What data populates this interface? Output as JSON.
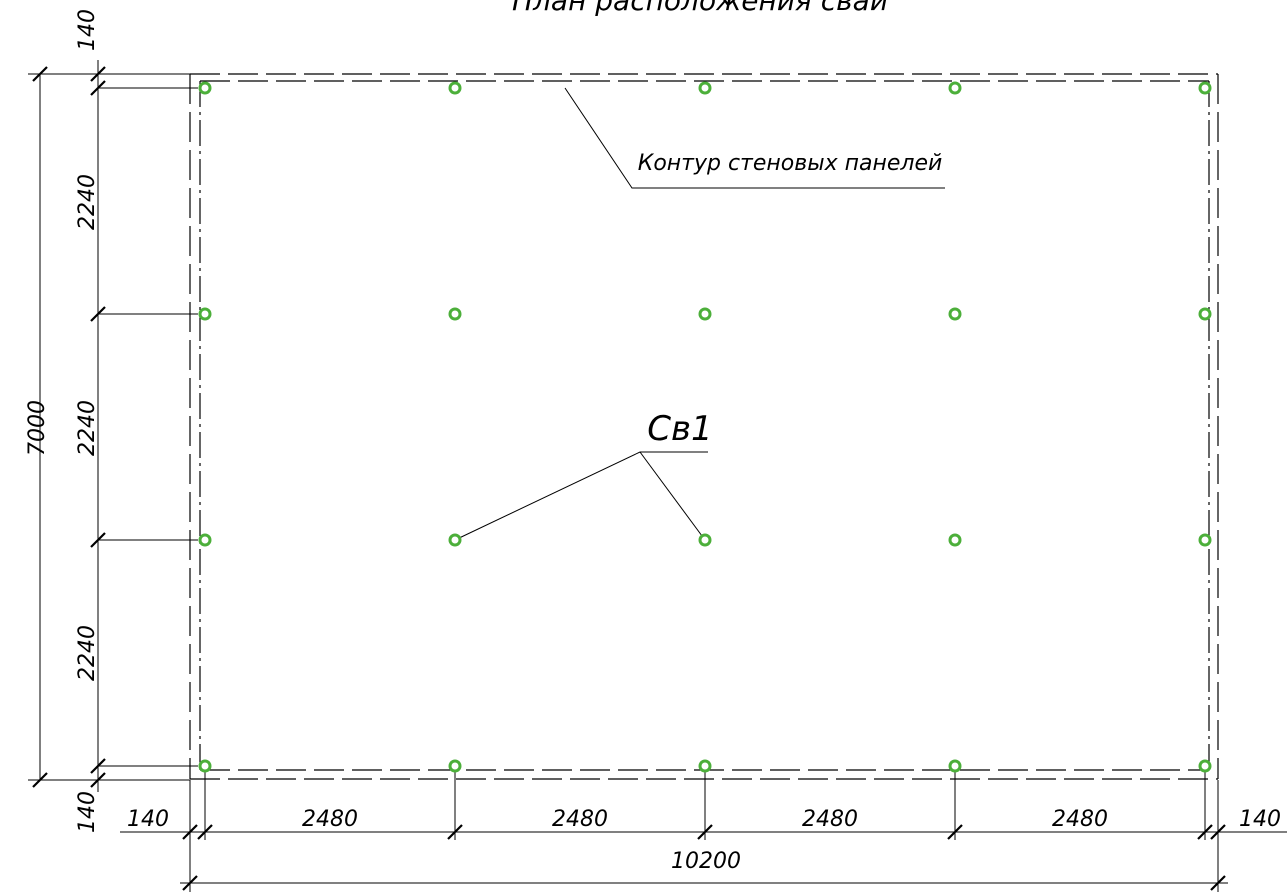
{
  "header": {
    "title": "План расположения свай"
  },
  "annotations": {
    "wall_contour": "Контур стеновых панелей",
    "pile_mark": "Св1"
  },
  "dimensions": {
    "left_total": "7000",
    "left": [
      "140",
      "2240",
      "2240",
      "2240",
      "140"
    ],
    "bottom": [
      "140",
      "2480",
      "2480",
      "2480",
      "2480",
      "140"
    ],
    "bottom_total": "10200"
  }
}
